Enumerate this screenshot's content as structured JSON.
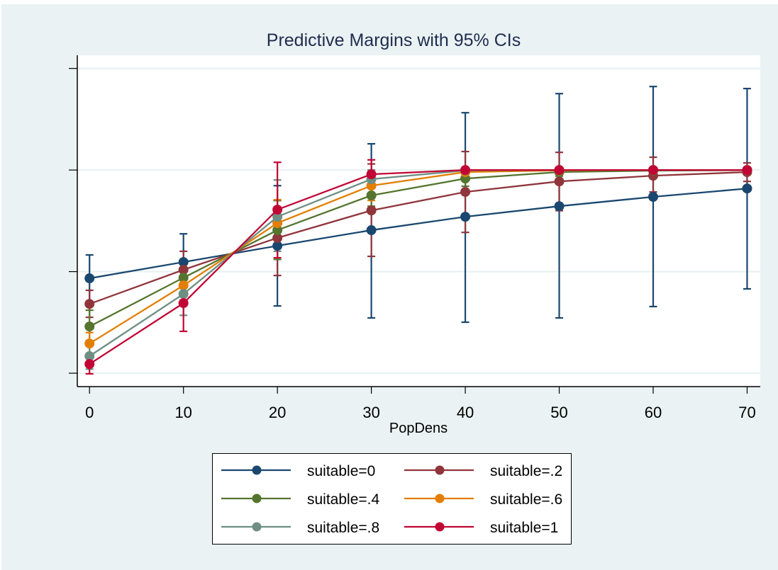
{
  "chart_data": {
    "type": "line",
    "title": "Predictive Margins with 95% CIs",
    "xlabel": "PopDens",
    "ylabel": "",
    "x": [
      0,
      10,
      20,
      30,
      40,
      50,
      60,
      70
    ],
    "xticks": [
      "0",
      "10",
      "20",
      "30",
      "40",
      "50",
      "60",
      "70"
    ],
    "xlim": [
      -1.3,
      71.4
    ],
    "yticks": [
      0,
      0.5,
      1,
      1.5
    ],
    "ytick_labels_visible": false,
    "ylim": [
      -0.066,
      1.565
    ],
    "grid": true,
    "legend_position": "bottom",
    "legend_columns": 2,
    "error_bars": "95% CI",
    "series": [
      {
        "name": "suitable=0",
        "color": "#1a476f",
        "values": [
          0.467,
          0.547,
          0.627,
          0.704,
          0.77,
          0.822,
          0.868,
          0.909
        ],
        "ci_low": [
          0.35,
          0.43,
          0.331,
          0.272,
          0.251,
          0.272,
          0.328,
          0.415
        ],
        "ci_high": [
          0.582,
          0.686,
          0.923,
          1.129,
          1.282,
          1.376,
          1.411,
          1.401
        ]
      },
      {
        "name": "suitable=.2",
        "color": "#90353b",
        "values": [
          0.341,
          0.509,
          0.666,
          0.801,
          0.892,
          0.944,
          0.972,
          0.99
        ],
        "ci_low": [
          0.275,
          0.44,
          0.481,
          0.575,
          0.693,
          0.8,
          0.892,
          0.944
        ],
        "ci_high": [
          0.408,
          0.6,
          0.85,
          1.03,
          1.091,
          1.087,
          1.063,
          1.035
        ]
      },
      {
        "name": "suitable=.4",
        "color": "#55752f",
        "values": [
          0.23,
          0.47,
          0.704,
          0.875,
          0.958,
          0.99,
          0.997,
          0.999
        ],
        "ci_low": [
          0.16,
          0.4,
          0.56,
          0.822,
          0.92,
          0.97,
          0.99,
          0.995
        ],
        "ci_high": [
          0.31,
          0.54,
          0.85,
          0.93,
          0.99,
          1.0,
          1.0,
          1.0
        ]
      },
      {
        "name": "suitable=.6",
        "color": "#e37e00",
        "values": [
          0.146,
          0.432,
          0.739,
          0.923,
          0.99,
          0.998,
          1.0,
          1.0
        ],
        "ci_low": [
          0.09,
          0.36,
          0.62,
          0.85,
          0.97,
          0.99,
          0.995,
          0.998
        ],
        "ci_high": [
          0.2,
          0.5,
          0.854,
          1.0,
          1.0,
          1.0,
          1.0,
          1.0
        ]
      },
      {
        "name": "suitable=.8",
        "color": "#6e8e84",
        "values": [
          0.084,
          0.39,
          0.77,
          0.955,
          0.998,
          1.0,
          1.0,
          1.0
        ],
        "ci_low": [
          0.02,
          0.285,
          0.6,
          0.91,
          0.99,
          0.995,
          0.998,
          0.999
        ],
        "ci_high": [
          0.15,
          0.47,
          0.951,
          1.0,
          1.0,
          1.0,
          1.0,
          1.0
        ]
      },
      {
        "name": "suitable=1",
        "color": "#c10534",
        "values": [
          0.045,
          0.345,
          0.805,
          0.979,
          1.0,
          1.0,
          1.0,
          1.0
        ],
        "ci_low": [
          -0.003,
          0.206,
          0.568,
          0.93,
          0.995,
          0.998,
          0.999,
          1.0
        ],
        "ci_high": [
          0.09,
          0.48,
          1.038,
          1.05,
          1.0,
          1.0,
          1.0,
          1.0
        ]
      }
    ]
  }
}
